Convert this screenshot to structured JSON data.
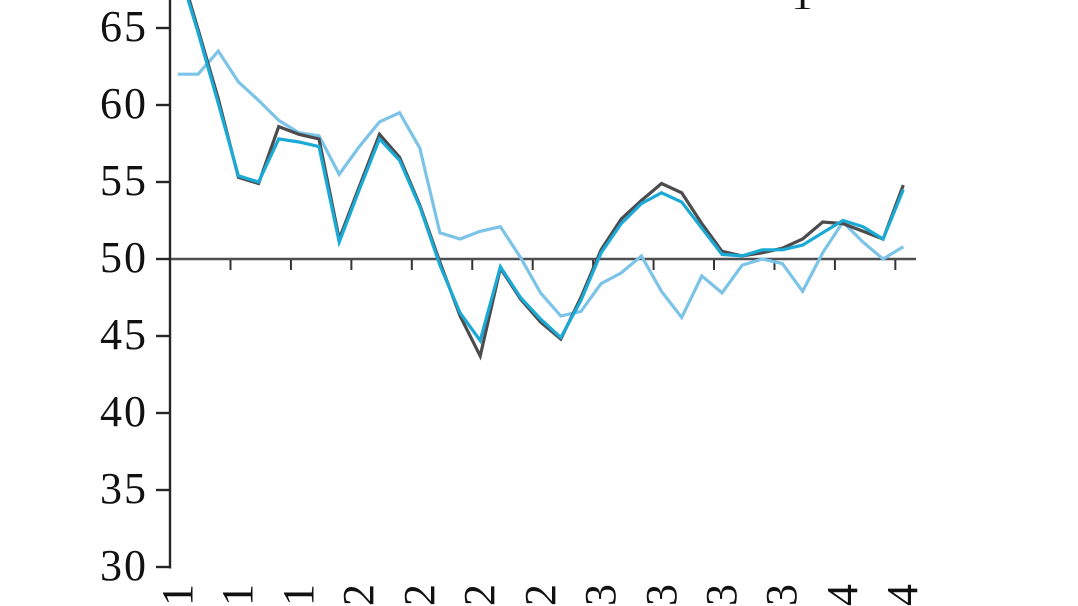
{
  "chart_data": {
    "type": "line",
    "title": "",
    "xlabel": "",
    "ylabel": "",
    "grid": false,
    "legend": "cut off above top edge of image",
    "truncated_text_fragment": "1",
    "y_axis": {
      "ticks": [
        65,
        60,
        55,
        50,
        45,
        40,
        35,
        30
      ],
      "visible_range": [
        30,
        67
      ]
    },
    "reference_line": {
      "value": 50
    },
    "x_axis": {
      "visible_rotated_labels": [
        "1",
        "1",
        "1",
        "2",
        "2",
        "2",
        "2",
        "3",
        "3",
        "3",
        "3",
        "4",
        "4"
      ],
      "labeled_every_n_points": 3,
      "points_per_series": 37
    },
    "series": [
      {
        "name": "light-blue",
        "color": "#7cc3e8",
        "values": [
          62.0,
          62.0,
          63.5,
          61.5,
          60.3,
          59.0,
          58.2,
          58.0,
          55.5,
          57.3,
          58.9,
          59.5,
          57.2,
          51.7,
          51.3,
          51.8,
          52.1,
          50.1,
          47.8,
          46.3,
          46.6,
          48.4,
          49.1,
          50.2,
          47.9,
          46.2,
          48.9,
          47.8,
          49.6,
          50.0,
          49.7,
          47.9,
          50.4,
          52.4,
          51.1,
          50.0,
          50.8
        ]
      },
      {
        "name": "dark-gray",
        "color": "#4c4c4e",
        "values": [
          69.3,
          64.9,
          60.4,
          55.3,
          54.9,
          58.6,
          58.1,
          57.8,
          51.3,
          54.7,
          58.1,
          56.6,
          53.5,
          49.8,
          46.3,
          43.7,
          49.4,
          47.4,
          45.9,
          44.8,
          47.5,
          50.6,
          52.6,
          53.8,
          54.9,
          54.3,
          52.3,
          50.5,
          50.2,
          50.4,
          50.7,
          51.3,
          52.4,
          52.3,
          51.8,
          51.3,
          54.8
        ]
      },
      {
        "name": "cyan",
        "color": "#1baad5",
        "values": [
          69.0,
          64.7,
          60.1,
          55.4,
          55.0,
          57.8,
          57.6,
          57.3,
          51.1,
          54.5,
          57.8,
          56.4,
          53.4,
          49.6,
          46.5,
          44.7,
          49.5,
          47.5,
          46.1,
          44.9,
          47.3,
          50.4,
          52.3,
          53.6,
          54.3,
          53.7,
          52.0,
          50.3,
          50.2,
          50.6,
          50.6,
          50.9,
          51.7,
          52.5,
          52.1,
          51.3,
          54.5
        ]
      }
    ],
    "colors": {
      "axis": "#262626",
      "reference_line": "#4f4f51",
      "reference_ticks": "#333333",
      "text": "#111111"
    }
  }
}
